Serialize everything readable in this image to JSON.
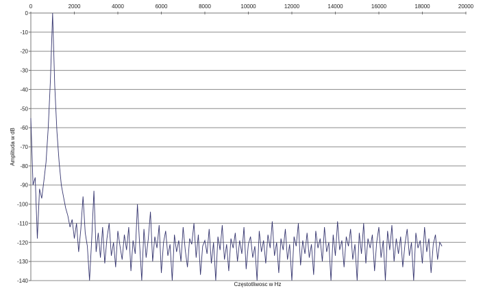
{
  "chart_data": {
    "type": "line",
    "title": "",
    "xlabel": "Częstotliwosc w Hz",
    "ylabel": "Amplituda w dB",
    "xlim": [
      0,
      20000
    ],
    "ylim": [
      -140,
      0
    ],
    "x_ticks": [
      "0",
      "2000",
      "4000",
      "6000",
      "8000",
      "10000",
      "12000",
      "14000",
      "16000",
      "18000",
      "20000"
    ],
    "y_ticks": [
      "0",
      "-10",
      "-20",
      "-30",
      "-40",
      "-50",
      "-60",
      "-70",
      "-80",
      "-90",
      "-100",
      "-110",
      "-120",
      "-130",
      "-140"
    ],
    "x_axis_position": "top",
    "grid": "horizontal",
    "legend": "none",
    "series_color": "#34346e",
    "x_step": 100,
    "x_start": 0,
    "values": [
      -55,
      -90,
      -86,
      -118,
      -92,
      -97,
      -88,
      -78,
      -60,
      -35,
      0,
      -38,
      -62,
      -78,
      -90,
      -96,
      -102,
      -106,
      -112,
      -108,
      -118,
      -110,
      -125,
      -113,
      -96,
      -115,
      -122,
      -140,
      -118,
      -93,
      -125,
      -115,
      -128,
      -112,
      -131,
      -118,
      -110,
      -127,
      -120,
      -133,
      -114,
      -122,
      -129,
      -116,
      -124,
      -112,
      -135,
      -119,
      -126,
      -100,
      -121,
      -140,
      -113,
      -128,
      -118,
      -104,
      -130,
      -117,
      -123,
      -111,
      -136,
      -120,
      -114,
      -127,
      -121,
      -140,
      -116,
      -125,
      -119,
      -130,
      -112,
      -124,
      -133,
      -118,
      -121,
      -110,
      -128,
      -116,
      -137,
      -122,
      -119,
      -126,
      -113,
      -131,
      -120,
      -140,
      -117,
      -124,
      -111,
      -129,
      -121,
      -135,
      -118,
      -123,
      -115,
      -130,
      -119,
      -126,
      -112,
      -134,
      -121,
      -117,
      -128,
      -122,
      -140,
      -114,
      -125,
      -119,
      -131,
      -116,
      -123,
      -109,
      -127,
      -120,
      -136,
      -118,
      -124,
      -113,
      -129,
      -121,
      -140,
      -117,
      -122,
      -110,
      -132,
      -119,
      -126,
      -115,
      -128,
      -121,
      -137,
      -114,
      -123,
      -118,
      -130,
      -112,
      -125,
      -120,
      -140,
      -116,
      -127,
      -109,
      -124,
      -119,
      -133,
      -117,
      -122,
      -113,
      -129,
      -121,
      -140,
      -115,
      -126,
      -110,
      -131,
      -118,
      -123,
      -116,
      -135,
      -120,
      -112,
      -128,
      -119,
      -140,
      -114,
      -124,
      -111,
      -130,
      -118,
      -126,
      -117,
      -133,
      -121,
      -113,
      -127,
      -120,
      -140,
      -115,
      -123,
      -119,
      -131,
      -112,
      -125,
      -118,
      -136,
      -121,
      -116,
      -129,
      -120,
      -122
    ]
  }
}
